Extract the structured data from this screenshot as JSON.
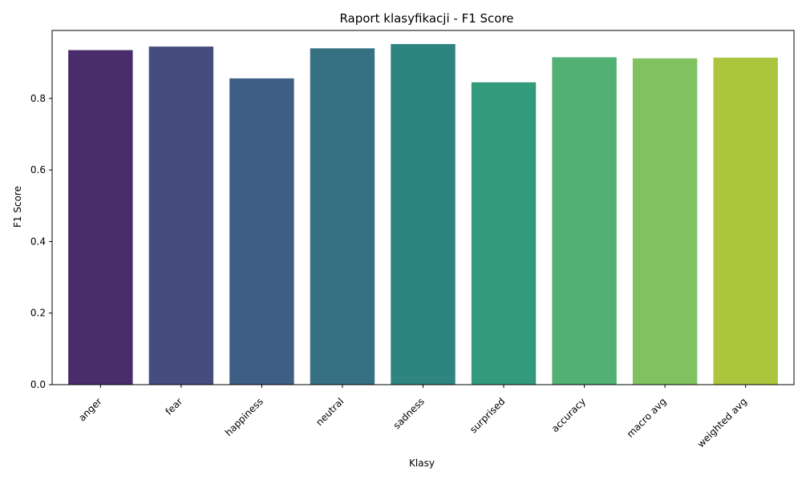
{
  "chart_data": {
    "type": "bar",
    "title": "Raport klasyfikacji - F1 Score",
    "xlabel": "Klasy",
    "ylabel": "F1 Score",
    "categories": [
      "anger",
      "fear",
      "happiness",
      "neutral",
      "sadness",
      "surprised",
      "accuracy",
      "macro avg",
      "weighted avg"
    ],
    "values": [
      0.935,
      0.945,
      0.856,
      0.94,
      0.952,
      0.845,
      0.915,
      0.912,
      0.914
    ],
    "colors": [
      "#482c6c",
      "#474c7e",
      "#3e5e83",
      "#367083",
      "#2e8480",
      "#339a7b",
      "#53b074",
      "#80c25f",
      "#abc63c"
    ],
    "ylim": [
      0,
      0.99
    ],
    "yticks": [
      0.0,
      0.2,
      0.4,
      0.6,
      0.8
    ],
    "ytick_labels": [
      "0.0",
      "0.2",
      "0.4",
      "0.6",
      "0.8"
    ],
    "grid": false,
    "legend": "none"
  }
}
